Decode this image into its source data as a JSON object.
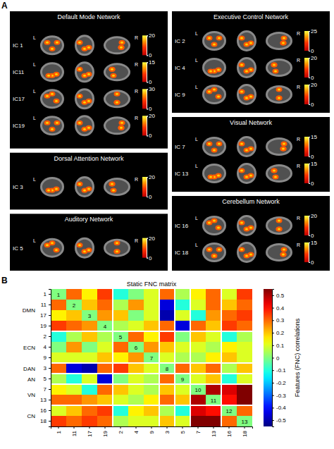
{
  "chart_data": [
    {
      "type": "image_grid",
      "panel": "A",
      "left_label": "L",
      "right_label": "R",
      "networks": [
        {
          "title": "Default Mode Network",
          "components": [
            {
              "label": "IC 1",
              "colorbar": {
                "range": [
                  0,
                  20
                ],
                "ticks": [
                  0,
                  20
                ]
              }
            },
            {
              "label": "IC11",
              "colorbar": {
                "range": [
                  0,
                  15
                ],
                "ticks": [
                  0,
                  15
                ]
              }
            },
            {
              "label": "IC17",
              "colorbar": {
                "range": [
                  0,
                  30
                ],
                "ticks": [
                  0,
                  30
                ]
              }
            },
            {
              "label": "IC19",
              "colorbar": {
                "range": [
                  0,
                  20
                ],
                "ticks": [
                  0,
                  20
                ]
              }
            }
          ]
        },
        {
          "title": "Executive Control Network",
          "components": [
            {
              "label": "IC 2",
              "colorbar": {
                "range": [
                  0,
                  25
                ],
                "ticks": [
                  0,
                  25
                ]
              }
            },
            {
              "label": "IC 4",
              "colorbar": {
                "range": [
                  0,
                  20
                ],
                "ticks": [
                  0,
                  20
                ]
              }
            },
            {
              "label": "IC 9",
              "colorbar": {
                "range": [
                  0,
                  20
                ],
                "ticks": [
                  0,
                  20
                ]
              }
            }
          ]
        },
        {
          "title": "Dorsal Attention Network",
          "components": [
            {
              "label": "IC 3",
              "colorbar": {
                "range": [
                  0,
                  20
                ],
                "ticks": [
                  0,
                  20
                ]
              }
            }
          ]
        },
        {
          "title": "Visual Network",
          "components": [
            {
              "label": "IC 7",
              "colorbar": {
                "range": [
                  0,
                  15
                ],
                "ticks": [
                  0,
                  15
                ]
              }
            },
            {
              "label": "IC 13",
              "colorbar": {
                "range": [
                  0,
                  15
                ],
                "ticks": [
                  0,
                  15
                ]
              }
            }
          ]
        },
        {
          "title": "Auditory Network",
          "components": [
            {
              "label": "IC 5",
              "colorbar": {
                "range": [
                  0,
                  20
                ],
                "ticks": [
                  0,
                  20
                ]
              }
            }
          ]
        },
        {
          "title": "Cerebellum Network",
          "components": [
            {
              "label": "IC 16",
              "colorbar": {
                "range": [
                  0,
                  20
                ],
                "ticks": [
                  0,
                  20
                ]
              }
            },
            {
              "label": "IC 18",
              "colorbar": {
                "range": [
                  0,
                  15
                ],
                "ticks": [
                  0,
                  15
                ]
              }
            }
          ]
        }
      ]
    },
    {
      "type": "heatmap",
      "panel": "B",
      "title": "Static FNC matrix",
      "categories": [
        "1",
        "11",
        "17",
        "19",
        "2",
        "4",
        "9",
        "3",
        "5",
        "7",
        "13",
        "16",
        "18"
      ],
      "groups": [
        {
          "label": "DMN",
          "count": 4
        },
        {
          "label": "ECN",
          "count": 3
        },
        {
          "label": "DAN",
          "count": 1
        },
        {
          "label": "AN",
          "count": 1
        },
        {
          "label": "VN",
          "count": 2
        },
        {
          "label": "CN",
          "count": 2
        }
      ],
      "values": [
        [
          0,
          0.3,
          0.15,
          0.35,
          -0.1,
          0,
          0.1,
          0.3,
          0.05,
          0.15,
          0.3,
          0.1,
          0.35
        ],
        [
          0.3,
          0,
          0.2,
          0.3,
          0.05,
          0.25,
          0.1,
          -0.45,
          -0.1,
          0.1,
          0.3,
          0.2,
          0.3
        ],
        [
          0.15,
          0.2,
          0,
          0.25,
          0.2,
          0,
          0.1,
          -0.5,
          0.1,
          -0.1,
          0.25,
          0.3,
          0.35
        ],
        [
          0.35,
          0.3,
          0.25,
          0,
          0.05,
          0.1,
          0.2,
          0.3,
          -0.45,
          0.3,
          0.2,
          0.35,
          0.3
        ],
        [
          -0.1,
          0.05,
          0.2,
          0.05,
          0,
          0.3,
          0.15,
          0.35,
          0,
          0.2,
          0.1,
          -0.1,
          0.05
        ],
        [
          0,
          0.25,
          0,
          0.1,
          0.3,
          0,
          0.25,
          0.2,
          0.1,
          0.1,
          0.05,
          0.15,
          0.1
        ],
        [
          0.1,
          0.1,
          0.1,
          0.2,
          0.15,
          0.25,
          0,
          0.1,
          0.05,
          0.05,
          0.15,
          0.2,
          0.1
        ],
        [
          0.3,
          -0.45,
          -0.5,
          0.3,
          0.35,
          0.2,
          0.1,
          0,
          0.3,
          0.2,
          0.3,
          0.05,
          0.2
        ],
        [
          0.05,
          -0.1,
          0.1,
          -0.45,
          0,
          0.1,
          0.05,
          0.3,
          0,
          0.1,
          0.2,
          -0.1,
          0.1
        ],
        [
          0.15,
          0.1,
          -0.1,
          0.3,
          0.2,
          0.1,
          0.05,
          0.2,
          0.1,
          0,
          0.5,
          0.45,
          0.55
        ],
        [
          0.3,
          0.3,
          0.25,
          0.2,
          0.1,
          0.05,
          0.15,
          0.3,
          0.2,
          0.5,
          0,
          0.4,
          0.55
        ],
        [
          0.1,
          0.2,
          0.3,
          0.35,
          -0.1,
          0.15,
          0.2,
          0.05,
          -0.1,
          0.45,
          0.4,
          0,
          0.3
        ],
        [
          0.35,
          0.3,
          0.35,
          0.3,
          0.05,
          0.1,
          0.1,
          0.2,
          0.1,
          0.55,
          0.55,
          0.3,
          0
        ]
      ],
      "diagonal_labels": [
        1,
        2,
        3,
        4,
        5,
        6,
        7,
        8,
        9,
        10,
        11,
        12,
        13
      ],
      "colorbar": {
        "label": "Features (FNC) correlations",
        "range": [
          -0.55,
          0.55
        ],
        "ticks": [
          -0.5,
          -0.4,
          -0.3,
          -0.2,
          -0.1,
          0,
          0.1,
          0.2,
          0.3,
          0.4,
          0.5
        ]
      }
    }
  ]
}
